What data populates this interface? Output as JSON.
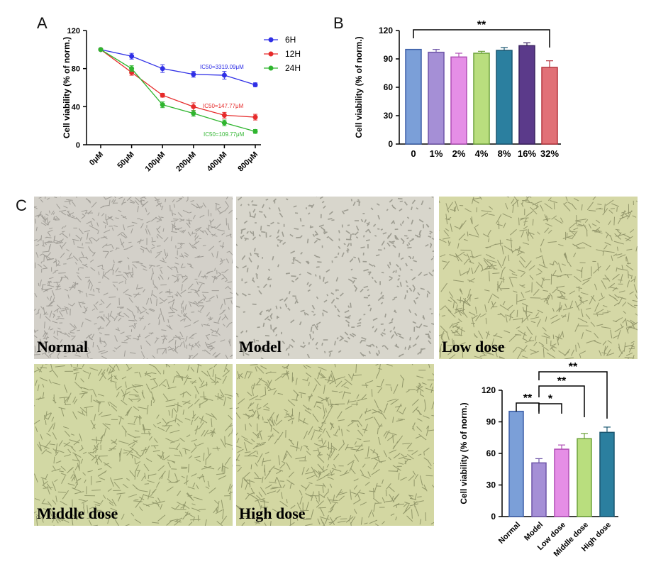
{
  "panels": {
    "a": "A",
    "b": "B",
    "c": "C"
  },
  "chart_data": [
    {
      "id": "A",
      "type": "line",
      "ylabel": "Cell viability (% of norm.)",
      "categories": [
        "0μM",
        "50μM",
        "100μM",
        "200μM",
        "400μM",
        "800μM"
      ],
      "ylim": [
        0,
        120
      ],
      "yticks": [
        0,
        40,
        80,
        120
      ],
      "legend_position": "top-right",
      "series": [
        {
          "name": "6H",
          "color": "#2f2fe6",
          "values": [
            100,
            93,
            80,
            74,
            73,
            63
          ],
          "errors": [
            1,
            3,
            4,
            3,
            4,
            2
          ],
          "annotation": "IC50=3319.09μM"
        },
        {
          "name": "12H",
          "color": "#e62b2b",
          "values": [
            100,
            76,
            52,
            40,
            31,
            29
          ],
          "errors": [
            1,
            3,
            2,
            4,
            3,
            3
          ],
          "annotation": "IC50=147.77μM"
        },
        {
          "name": "24H",
          "color": "#2fb52f",
          "values": [
            100,
            80,
            42,
            33,
            23,
            14
          ],
          "errors": [
            1,
            3,
            3,
            3,
            3,
            2
          ],
          "annotation": "IC50=109.77μM"
        }
      ]
    },
    {
      "id": "B",
      "type": "bar",
      "ylabel": "Cell viability (% of norm.)",
      "categories": [
        "0",
        "1%",
        "2%",
        "4%",
        "8%",
        "16%",
        "32%"
      ],
      "values": [
        100,
        97,
        92,
        96,
        99,
        104,
        81
      ],
      "errors": [
        0,
        3,
        4,
        2,
        3,
        3,
        7
      ],
      "colors": [
        "#7b9fd8",
        "#a58fd6",
        "#e58ee6",
        "#b9de7e",
        "#2b7f9f",
        "#5b3a8a",
        "#e17177"
      ],
      "borders": [
        "#3d5fa8",
        "#6f55a8",
        "#b04fb5",
        "#6ea33c",
        "#1a5670",
        "#3a2260",
        "#b5363f"
      ],
      "ylim": [
        0,
        120
      ],
      "yticks": [
        0,
        30,
        60,
        90,
        120
      ],
      "significance": [
        {
          "from": 0,
          "to": 6,
          "label": "**"
        }
      ]
    },
    {
      "id": "C",
      "type": "bar",
      "ylabel": "Cell viability (% of norm.)",
      "categories": [
        "Normal",
        "Model",
        "Low dose",
        "Middle dose",
        "High dose"
      ],
      "values": [
        100,
        51,
        64,
        74,
        80
      ],
      "errors": [
        0,
        4,
        4,
        5,
        5
      ],
      "colors": [
        "#7b9fd8",
        "#a58fd6",
        "#e58ee6",
        "#b9de7e",
        "#2b7f9f"
      ],
      "borders": [
        "#3d5fa8",
        "#6f55a8",
        "#b04fb5",
        "#6ea33c",
        "#1a5670"
      ],
      "ylim": [
        0,
        120
      ],
      "yticks": [
        0,
        30,
        60,
        90,
        120
      ],
      "significance": [
        {
          "from": 0,
          "to": 1,
          "label": "**"
        },
        {
          "from": 1,
          "to": 2,
          "label": "*"
        },
        {
          "from": 1,
          "to": 3,
          "label": "**"
        },
        {
          "from": 1,
          "to": 4,
          "label": "**"
        }
      ]
    }
  ],
  "micrographs": [
    {
      "label": "Normal",
      "bg": "#d3d0c9",
      "cell": "#8e8b84",
      "tone": "dense"
    },
    {
      "label": "Model",
      "bg": "#d8d6cc",
      "cell": "#8a887e",
      "tone": "sparse"
    },
    {
      "label": "Low dose",
      "bg": "#d5d8a6",
      "cell": "#7e8258",
      "tone": "net"
    },
    {
      "label": "Middle dose",
      "bg": "#d2d8a4",
      "cell": "#7d8458",
      "tone": "net"
    },
    {
      "label": "High dose",
      "bg": "#d3d7a2",
      "cell": "#7c8157",
      "tone": "net"
    }
  ]
}
